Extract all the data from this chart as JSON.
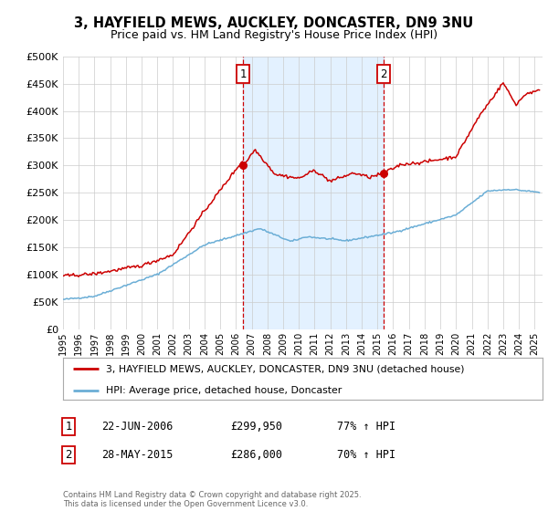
{
  "title": "3, HAYFIELD MEWS, AUCKLEY, DONCASTER, DN9 3NU",
  "subtitle": "Price paid vs. HM Land Registry's House Price Index (HPI)",
  "legend_line1": "3, HAYFIELD MEWS, AUCKLEY, DONCASTER, DN9 3NU (detached house)",
  "legend_line2": "HPI: Average price, detached house, Doncaster",
  "marker1_date": "22-JUN-2006",
  "marker1_price": "£299,950",
  "marker1_hpi": "77% ↑ HPI",
  "marker2_date": "28-MAY-2015",
  "marker2_price": "£286,000",
  "marker2_hpi": "70% ↑ HPI",
  "footer": "Contains HM Land Registry data © Crown copyright and database right 2025.\nThis data is licensed under the Open Government Licence v3.0.",
  "hpi_color": "#6baed6",
  "price_color": "#cc0000",
  "marker_color": "#cc0000",
  "vline_color": "#cc0000",
  "shade_color": "#ddeeff",
  "background_color": "#ffffff",
  "grid_color": "#cccccc",
  "ylim": [
    0,
    500000
  ],
  "xlim_start": 1995.0,
  "xlim_end": 2025.5,
  "marker1_x": 2006.47,
  "marker2_x": 2015.41,
  "marker1_y": 299950,
  "marker2_y": 286000
}
